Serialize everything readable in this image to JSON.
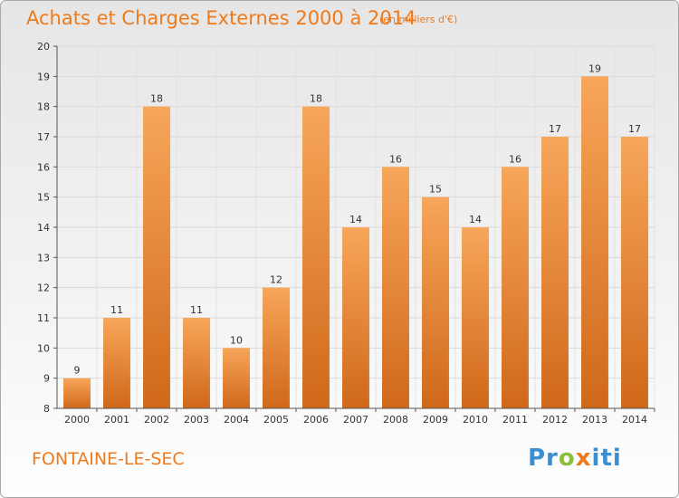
{
  "header": {
    "title": "Achats et Charges Externes 2000 à 2014",
    "unit": "(en milliers d'€)"
  },
  "footer": {
    "commune": "FONTAINE-LE-SEC",
    "logo_parts": [
      "Pr",
      "o",
      "x",
      "iti"
    ]
  },
  "colors": {
    "accent": "#ee7a1c",
    "bar_light": "#f7a65a",
    "bar_dark": "#d0681a",
    "grid": "#d9d9d9"
  },
  "chart_data": {
    "type": "bar",
    "title": "Achats et Charges Externes 2000 à 2014",
    "subtitle": "(en milliers d'€)",
    "categories": [
      "2000",
      "2001",
      "2002",
      "2003",
      "2004",
      "2005",
      "2006",
      "2007",
      "2008",
      "2009",
      "2010",
      "2011",
      "2012",
      "2013",
      "2014"
    ],
    "values": [
      9,
      11,
      18,
      11,
      10,
      12,
      18,
      14,
      16,
      15,
      14,
      16,
      17,
      19,
      17
    ],
    "ylim": [
      8,
      20
    ],
    "yticks": [
      8,
      9,
      10,
      11,
      12,
      13,
      14,
      15,
      16,
      17,
      18,
      19,
      20
    ],
    "grid": true,
    "data_labels": true
  }
}
